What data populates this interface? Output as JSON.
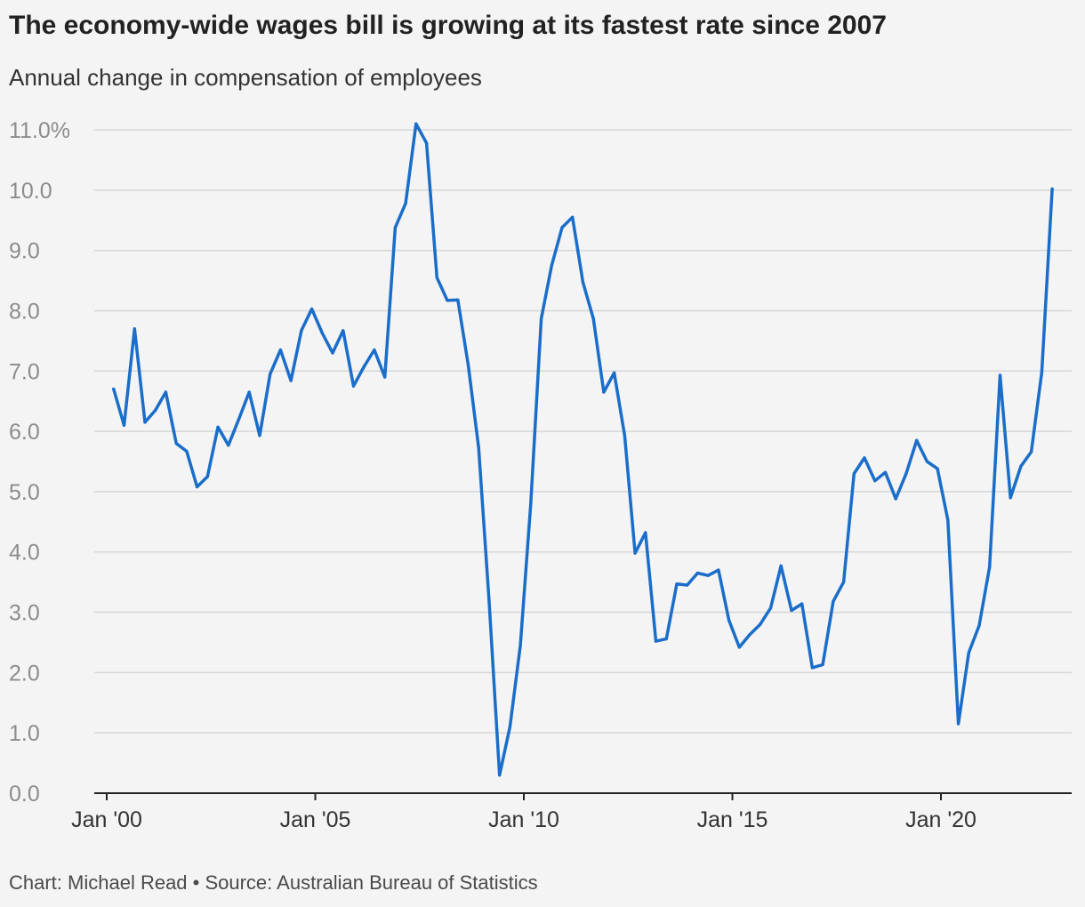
{
  "header": {
    "title": "The economy-wide wages bill is growing at its fastest rate since 2007",
    "subtitle": "Annual change in compensation of employees"
  },
  "footer": {
    "credit": "Chart: Michael Read • Source: Australian Bureau of Statistics"
  },
  "colors": {
    "line": "#1a6ec9",
    "background": "#f4f4f4",
    "grid": "#d6d6d6",
    "axis": "#222222"
  },
  "chart_data": {
    "type": "line",
    "title": "The economy-wide wages bill is growing at its fastest rate since 2007",
    "subtitle": "Annual change in compensation of employees",
    "xlabel": "",
    "ylabel": "",
    "ylim": [
      0,
      11
    ],
    "grid": true,
    "y_ticks": [
      {
        "value": 0,
        "label": "0.0"
      },
      {
        "value": 1,
        "label": "1.0"
      },
      {
        "value": 2,
        "label": "2.0"
      },
      {
        "value": 3,
        "label": "3.0"
      },
      {
        "value": 4,
        "label": "4.0"
      },
      {
        "value": 5,
        "label": "5.0"
      },
      {
        "value": 6,
        "label": "6.0"
      },
      {
        "value": 7,
        "label": "7.0"
      },
      {
        "value": 8,
        "label": "8.0"
      },
      {
        "value": 9,
        "label": "9.0"
      },
      {
        "value": 10,
        "label": "10.0"
      },
      {
        "value": 11,
        "label": "11.0%"
      }
    ],
    "x_ticks": [
      {
        "value": "2000-01",
        "label": "Jan '00"
      },
      {
        "value": "2005-01",
        "label": "Jan '05"
      },
      {
        "value": "2010-01",
        "label": "Jan '10"
      },
      {
        "value": "2015-01",
        "label": "Jan '15"
      },
      {
        "value": "2020-01",
        "label": "Jan '20"
      }
    ],
    "x_range": [
      "2000-01",
      "2022-10"
    ],
    "series": [
      {
        "points": [
          [
            "2000-03",
            6.7
          ],
          [
            "2000-06",
            6.1
          ],
          [
            "2000-09",
            7.7
          ],
          [
            "2000-12",
            6.15
          ],
          [
            "2001-03",
            6.35
          ],
          [
            "2001-06",
            6.65
          ],
          [
            "2001-09",
            5.8
          ],
          [
            "2001-12",
            5.67
          ],
          [
            "2002-03",
            5.08
          ],
          [
            "2002-06",
            5.25
          ],
          [
            "2002-09",
            6.07
          ],
          [
            "2002-12",
            5.77
          ],
          [
            "2003-03",
            6.2
          ],
          [
            "2003-06",
            6.65
          ],
          [
            "2003-09",
            5.93
          ],
          [
            "2003-12",
            6.95
          ],
          [
            "2004-03",
            7.35
          ],
          [
            "2004-06",
            6.84
          ],
          [
            "2004-09",
            7.67
          ],
          [
            "2004-12",
            8.03
          ],
          [
            "2005-03",
            7.63
          ],
          [
            "2005-06",
            7.3
          ],
          [
            "2005-09",
            7.67
          ],
          [
            "2005-12",
            6.75
          ],
          [
            "2006-03",
            7.07
          ],
          [
            "2006-06",
            7.35
          ],
          [
            "2006-09",
            6.9
          ],
          [
            "2006-12",
            9.38
          ],
          [
            "2007-03",
            9.78
          ],
          [
            "2007-06",
            11.1
          ],
          [
            "2007-09",
            10.78
          ],
          [
            "2007-12",
            8.55
          ],
          [
            "2008-03",
            8.17
          ],
          [
            "2008-06",
            8.18
          ],
          [
            "2008-09",
            7.1
          ],
          [
            "2008-12",
            5.73
          ],
          [
            "2009-03",
            3.2
          ],
          [
            "2009-06",
            0.3
          ],
          [
            "2009-09",
            1.1
          ],
          [
            "2009-12",
            2.45
          ],
          [
            "2010-03",
            4.8
          ],
          [
            "2010-06",
            7.87
          ],
          [
            "2010-09",
            8.75
          ],
          [
            "2010-12",
            9.38
          ],
          [
            "2011-03",
            9.55
          ],
          [
            "2011-06",
            8.47
          ],
          [
            "2011-09",
            7.87
          ],
          [
            "2011-12",
            6.65
          ],
          [
            "2012-03",
            6.97
          ],
          [
            "2012-06",
            5.93
          ],
          [
            "2012-09",
            3.98
          ],
          [
            "2012-12",
            4.32
          ],
          [
            "2013-03",
            2.52
          ],
          [
            "2013-06",
            2.56
          ],
          [
            "2013-09",
            3.47
          ],
          [
            "2013-12",
            3.45
          ],
          [
            "2014-03",
            3.65
          ],
          [
            "2014-06",
            3.61
          ],
          [
            "2014-09",
            3.7
          ],
          [
            "2014-12",
            2.87
          ],
          [
            "2015-03",
            2.42
          ],
          [
            "2015-06",
            2.63
          ],
          [
            "2015-09",
            2.8
          ],
          [
            "2015-12",
            3.07
          ],
          [
            "2016-03",
            3.77
          ],
          [
            "2016-06",
            3.03
          ],
          [
            "2016-09",
            3.14
          ],
          [
            "2016-12",
            2.08
          ],
          [
            "2017-03",
            2.13
          ],
          [
            "2017-06",
            3.18
          ],
          [
            "2017-09",
            3.5
          ],
          [
            "2017-12",
            5.3
          ],
          [
            "2018-03",
            5.56
          ],
          [
            "2018-06",
            5.18
          ],
          [
            "2018-09",
            5.32
          ],
          [
            "2018-12",
            4.88
          ],
          [
            "2019-03",
            5.3
          ],
          [
            "2019-06",
            5.85
          ],
          [
            "2019-09",
            5.5
          ],
          [
            "2019-12",
            5.38
          ],
          [
            "2020-03",
            4.53
          ],
          [
            "2020-06",
            1.15
          ],
          [
            "2020-09",
            2.33
          ],
          [
            "2020-12",
            2.78
          ],
          [
            "2021-03",
            3.75
          ],
          [
            "2021-06",
            6.93
          ],
          [
            "2021-09",
            4.9
          ],
          [
            "2021-12",
            5.42
          ],
          [
            "2022-03",
            5.66
          ],
          [
            "2022-06",
            6.98
          ],
          [
            "2022-09",
            10.02
          ]
        ]
      }
    ]
  }
}
